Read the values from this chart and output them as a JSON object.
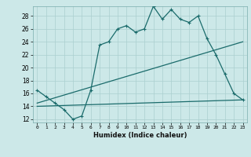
{
  "xlabel": "Humidex (Indice chaleur)",
  "ylabel": "",
  "bg_color": "#cce8e8",
  "grid_color": "#aacfcf",
  "line_color": "#1a6b6b",
  "xlim": [
    -0.5,
    23.5
  ],
  "ylim": [
    11.5,
    29.5
  ],
  "xticks": [
    0,
    1,
    2,
    3,
    4,
    5,
    6,
    7,
    8,
    9,
    10,
    11,
    12,
    13,
    14,
    15,
    16,
    17,
    18,
    19,
    20,
    21,
    22,
    23
  ],
  "yticks": [
    12,
    14,
    16,
    18,
    20,
    22,
    24,
    26,
    28
  ],
  "series1": {
    "x": [
      0,
      1,
      2,
      3,
      4,
      5,
      6,
      7,
      8,
      9,
      10,
      11,
      12,
      13,
      14,
      15,
      16,
      17,
      18,
      19,
      20,
      21,
      22,
      23
    ],
    "y": [
      16.5,
      15.5,
      14.5,
      13.5,
      12.0,
      12.5,
      16.5,
      23.5,
      24.0,
      26.0,
      26.5,
      25.5,
      26.0,
      29.5,
      27.5,
      29.0,
      27.5,
      27.0,
      28.0,
      24.5,
      22.0,
      19.0,
      16.0,
      15.0
    ]
  },
  "series2": {
    "x": [
      0,
      23
    ],
    "y": [
      14.5,
      24.0
    ]
  },
  "series3": {
    "x": [
      0,
      23
    ],
    "y": [
      14.0,
      15.0
    ]
  }
}
